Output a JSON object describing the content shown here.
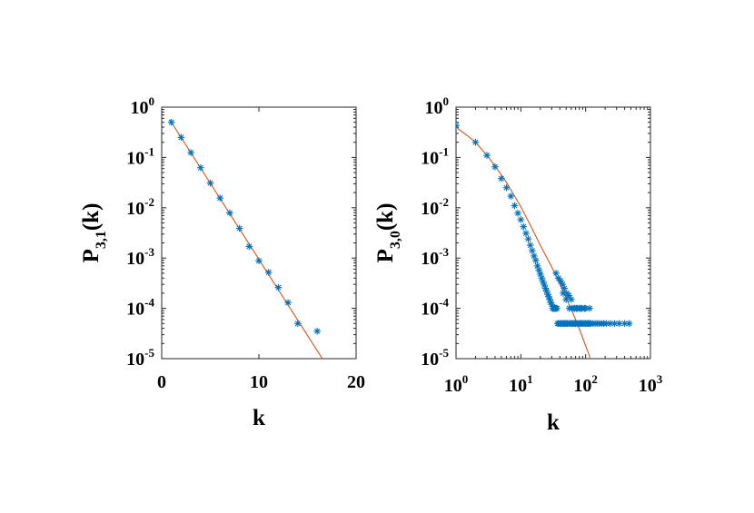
{
  "chart_data": [
    {
      "type": "scatter",
      "xlabel": "k",
      "ylabel": {
        "base": "P",
        "sub": "3,1",
        "suffix": "(k)"
      },
      "xscale": "linear",
      "yscale": "log",
      "xlim": [
        0,
        20
      ],
      "ylim": [
        1e-05,
        1
      ],
      "xticks": [
        {
          "value": 0,
          "label": "0"
        },
        {
          "value": 10,
          "label": "10"
        },
        {
          "value": 20,
          "label": "20"
        }
      ],
      "yticks": [
        {
          "value": 1,
          "base": "10",
          "exp": "0"
        },
        {
          "value": 0.1,
          "base": "10",
          "exp": "-1"
        },
        {
          "value": 0.01,
          "base": "10",
          "exp": "-2"
        },
        {
          "value": 0.001,
          "base": "10",
          "exp": "-3"
        },
        {
          "value": 0.0001,
          "base": "10",
          "exp": "-4"
        },
        {
          "value": 1e-05,
          "base": "10",
          "exp": "-5"
        }
      ],
      "series": [
        {
          "kind": "markers",
          "marker": "asterisk",
          "color": "#0072BD",
          "x": [
            1,
            2,
            3,
            4,
            5,
            6,
            7,
            8,
            9,
            10,
            11,
            12,
            13,
            14,
            16
          ],
          "y": [
            0.5,
            0.25,
            0.125,
            0.0625,
            0.031,
            0.0156,
            0.0079,
            0.0039,
            0.0017,
            0.00088,
            0.00052,
            0.00026,
            0.00013,
            5e-05,
            3.5e-05
          ]
        },
        {
          "kind": "line",
          "color": "#D95319",
          "x": [
            0.8,
            16.6
          ],
          "y": [
            0.57,
            9.5e-06
          ]
        }
      ]
    },
    {
      "type": "scatter",
      "xlabel": "k",
      "ylabel": {
        "base": "P",
        "sub": "3,0",
        "suffix": "(k)"
      },
      "xscale": "log",
      "yscale": "log",
      "xlim": [
        1,
        1000
      ],
      "ylim": [
        1e-05,
        1
      ],
      "xticks": [
        {
          "value": 1,
          "base": "10",
          "exp": "0"
        },
        {
          "value": 10,
          "base": "10",
          "exp": "1"
        },
        {
          "value": 100,
          "base": "10",
          "exp": "2"
        },
        {
          "value": 1000,
          "base": "10",
          "exp": "3"
        }
      ],
      "yticks": [
        {
          "value": 1,
          "base": "10",
          "exp": "0"
        },
        {
          "value": 0.1,
          "base": "10",
          "exp": "-1"
        },
        {
          "value": 0.01,
          "base": "10",
          "exp": "-2"
        },
        {
          "value": 0.001,
          "base": "10",
          "exp": "-3"
        },
        {
          "value": 0.0001,
          "base": "10",
          "exp": "-4"
        },
        {
          "value": 1e-05,
          "base": "10",
          "exp": "-5"
        }
      ],
      "series": [
        {
          "kind": "markers",
          "marker": "asterisk",
          "color": "#0072BD",
          "x": [
            1,
            2,
            3,
            4,
            5,
            6,
            7,
            8,
            9,
            10,
            11,
            12,
            13,
            14,
            15,
            16,
            17,
            18,
            19,
            20,
            21,
            22,
            23,
            24,
            25,
            26,
            27,
            28,
            29,
            30,
            31,
            32,
            33,
            34,
            35,
            36,
            37,
            38,
            40,
            42,
            44,
            46,
            48,
            50,
            52,
            55,
            58,
            61,
            64,
            67,
            70,
            74,
            78,
            82,
            86,
            90,
            95,
            100,
            105,
            110,
            115,
            120,
            130,
            140,
            150,
            160,
            175,
            190,
            210,
            240,
            280,
            330,
            400,
            470,
            35,
            38,
            41,
            44,
            47,
            51,
            55,
            60,
            66,
            72,
            80,
            88,
            96,
            45,
            50,
            56,
            62,
            68,
            75,
            84,
            100,
            115
          ],
          "y": [
            0.43,
            0.2,
            0.11,
            0.065,
            0.038,
            0.025,
            0.017,
            0.011,
            0.0078,
            0.0058,
            0.0042,
            0.0031,
            0.0024,
            0.0018,
            0.0014,
            0.0011,
            0.0009,
            0.0007,
            0.00058,
            0.00048,
            0.0004,
            0.00034,
            0.00029,
            0.00025,
            0.00022,
            0.00019,
            0.00017,
            0.00015,
            0.00013,
            0.00012,
            0.0001,
            0.0001,
            0.0001,
            0.0001,
            0.0001,
            0.0001,
            5e-05,
            5e-05,
            5e-05,
            5e-05,
            5e-05,
            5e-05,
            5e-05,
            5e-05,
            5e-05,
            5e-05,
            5e-05,
            5e-05,
            5e-05,
            5e-05,
            5e-05,
            5e-05,
            5e-05,
            5e-05,
            5e-05,
            5e-05,
            5e-05,
            5e-05,
            5e-05,
            5e-05,
            5e-05,
            5e-05,
            5e-05,
            5e-05,
            5e-05,
            5e-05,
            5e-05,
            5e-05,
            5e-05,
            5e-05,
            5e-05,
            5e-05,
            5e-05,
            5e-05,
            0.0005,
            0.0004,
            0.00035,
            0.0003,
            0.00025,
            0.0002,
            0.00018,
            0.00015,
            0.0001,
            0.0001,
            0.0001,
            0.0001,
            0.0001,
            0.0002,
            0.00015,
            0.0001,
            0.0001,
            0.0001,
            0.0001,
            0.0001,
            0.0001,
            0.0001
          ]
        },
        {
          "kind": "line",
          "color": "#D95319",
          "x": [
            1,
            1.5,
            2,
            3,
            4,
            6,
            8,
            10,
            15,
            20,
            30,
            40,
            50,
            60,
            70,
            80,
            90,
            100,
            110,
            118
          ],
          "y": [
            0.4,
            0.27,
            0.2,
            0.11,
            0.068,
            0.032,
            0.017,
            0.0105,
            0.0038,
            0.0018,
            0.00066,
            0.00031,
            0.00016,
            9.5e-05,
            6e-05,
            3.9e-05,
            2.6e-05,
            1.8e-05,
            1.3e-05,
            1e-05
          ]
        }
      ]
    }
  ]
}
